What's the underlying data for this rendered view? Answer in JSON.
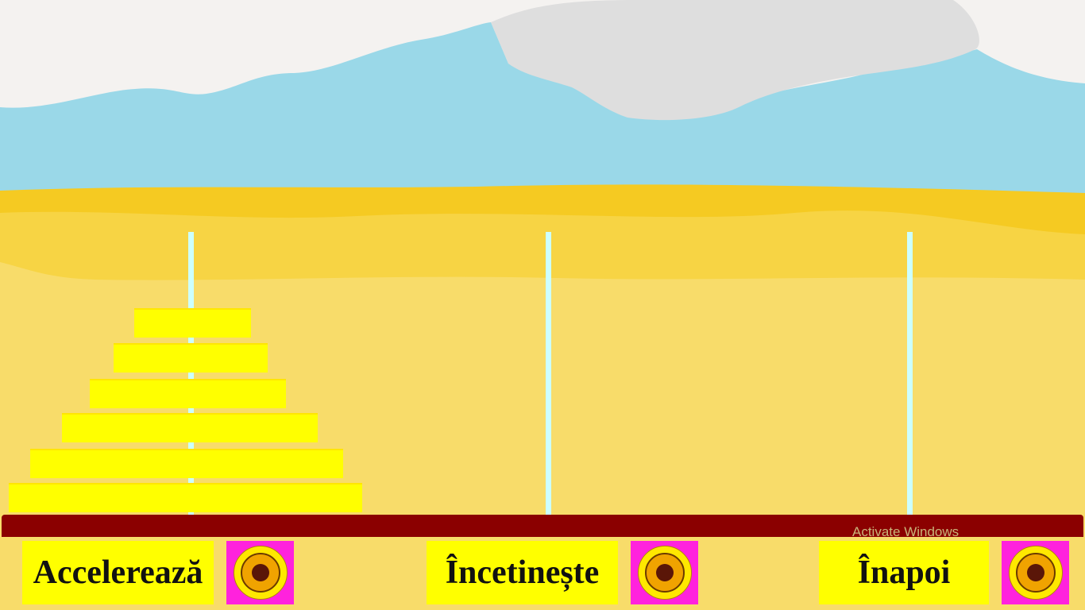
{
  "game": {
    "pegs": 3,
    "disk_count": 6,
    "disks_on_peg": [
      6,
      0,
      0
    ]
  },
  "controls": {
    "accelerate_label": "Accelerează",
    "slowdown_label": "Încetinește",
    "back_label": "Înapoi",
    "button_icon": "target-icon"
  },
  "watermark": "Activate Windows",
  "colors": {
    "sky": "#9ad8e8",
    "cloud": "#dedede",
    "sand": "#f8dc6a",
    "disk": "#ffff00",
    "base": "#8b0000",
    "peg": "#ccffff",
    "button_bg": "#ffff00",
    "icon_bg": "#ff22dd"
  }
}
